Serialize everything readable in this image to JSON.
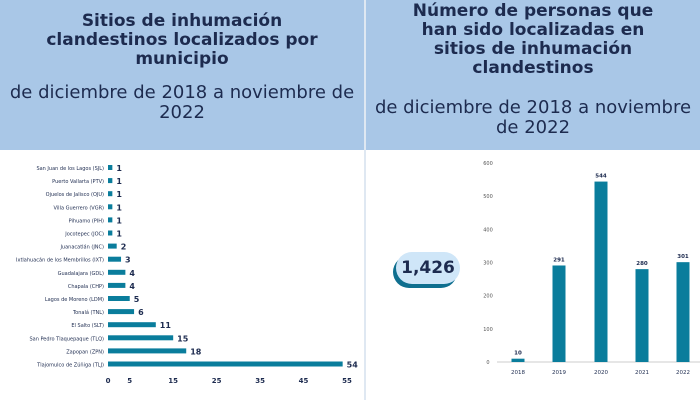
{
  "left_header": {
    "title": "Sitios de inhumación clandestinos localizados por municipio",
    "subtitle": "de diciembre de 2018 a noviembre de 2022"
  },
  "right_header": {
    "title": "Número de personas que han sido localizadas en sitios de inhumación clandestinos",
    "subtitle": "de diciembre de 2018 a noviembre de 2022"
  },
  "total": "1,426",
  "colors": {
    "bar": "#0a7d9c",
    "header_bg": "#a9c7e7",
    "text": "#1d2b4f"
  },
  "chart_data": [
    {
      "type": "bar",
      "orientation": "horizontal",
      "categories": [
        "San Juan de los Lagos (SJL)",
        "Puerto Vallarta (PTV)",
        "Ojuelos de Jalisco (OJU)",
        "Villa Guerrero (VGR)",
        "Pihuamo (PIH)",
        "Jocotepec (JOC)",
        "Juanacatlán (JNC)",
        "Ixtlahuacán de los Membrillos (IXT)",
        "Guadalajara (GDL)",
        "Chapala (CHP)",
        "Lagos de Moreno (LDM)",
        "Tonalá (TNL)",
        "El Salto (SLT)",
        "San Pedro Tlaquepaque (TLQ)",
        "Zapopan (ZPN)",
        "Tlajomulco de Zúñiga (TLJ)"
      ],
      "values": [
        1,
        1,
        1,
        1,
        1,
        1,
        2,
        3,
        4,
        4,
        5,
        6,
        11,
        15,
        18,
        54
      ],
      "xlim": [
        0,
        55
      ],
      "xticks": [
        0,
        5,
        15,
        25,
        35,
        45,
        55
      ],
      "grid": false
    },
    {
      "type": "bar",
      "categories": [
        "2018",
        "2019",
        "2020",
        "2021",
        "2022"
      ],
      "values": [
        10,
        291,
        544,
        280,
        301
      ],
      "ylim": [
        0,
        600
      ],
      "yticks": [
        0,
        100,
        200,
        300,
        400,
        500,
        600
      ],
      "grid": false
    }
  ]
}
